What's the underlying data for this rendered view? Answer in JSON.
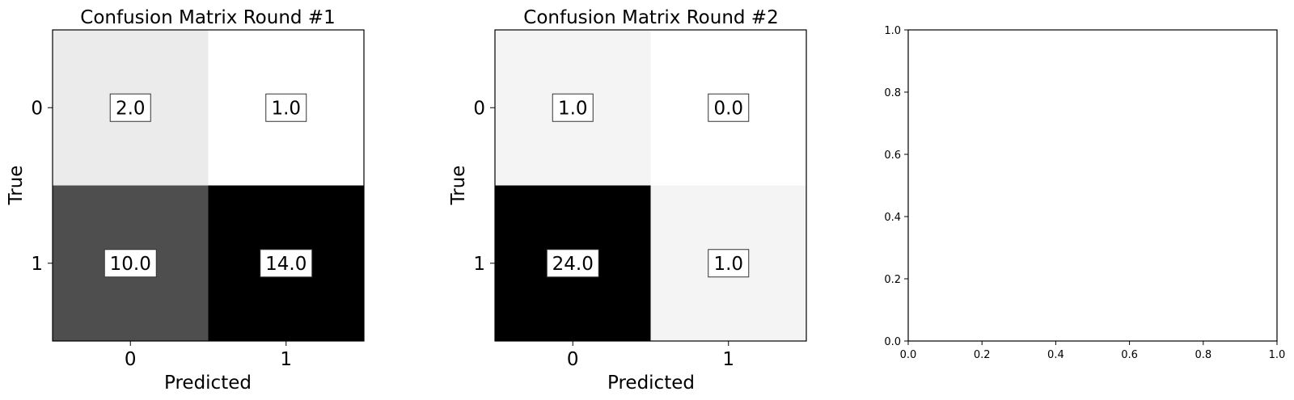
{
  "chart_data": [
    {
      "type": "heatmap",
      "title": "Confusion Matrix Round #1",
      "xlabel": "Predicted",
      "ylabel": "True",
      "x_categories": [
        "0",
        "1"
      ],
      "y_categories": [
        "0",
        "1"
      ],
      "values": [
        [
          2.0,
          1.0
        ],
        [
          10.0,
          14.0
        ]
      ],
      "value_labels": [
        [
          "2.0",
          "1.0"
        ],
        [
          "10.0",
          "14.0"
        ]
      ],
      "colormap": "gray_r"
    },
    {
      "type": "heatmap",
      "title": "Confusion Matrix Round #2",
      "xlabel": "Predicted",
      "ylabel": "True",
      "x_categories": [
        "0",
        "1"
      ],
      "y_categories": [
        "0",
        "1"
      ],
      "values": [
        [
          1.0,
          0.0
        ],
        [
          24.0,
          1.0
        ]
      ],
      "value_labels": [
        [
          "1.0",
          "0.0"
        ],
        [
          "24.0",
          "1.0"
        ]
      ],
      "colormap": "gray_r"
    },
    {
      "type": "scatter",
      "title": "",
      "xlabel": "",
      "ylabel": "",
      "xlim": [
        0.0,
        1.0
      ],
      "ylim": [
        0.0,
        1.0
      ],
      "xticks": [
        "0.0",
        "0.2",
        "0.4",
        "0.6",
        "0.8",
        "1.0"
      ],
      "yticks": [
        "0.0",
        "0.2",
        "0.4",
        "0.6",
        "0.8",
        "1.0"
      ],
      "series": []
    }
  ]
}
